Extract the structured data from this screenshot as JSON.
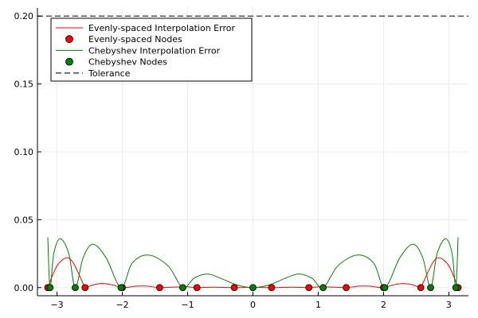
{
  "chart_data": {
    "type": "line",
    "title": "",
    "xlabel": "",
    "ylabel": "",
    "xlim": [
      -3.3,
      3.3
    ],
    "ylim": [
      -0.006,
      0.206
    ],
    "grid": true,
    "legend_position": "top-left",
    "x_ticks": [
      -3,
      -2,
      -1,
      0,
      1,
      2,
      3
    ],
    "x_tick_labels": [
      "−3",
      "−2",
      "−1",
      "0",
      "1",
      "2",
      "3"
    ],
    "y_ticks": [
      0.0,
      0.05,
      0.1,
      0.15,
      0.2
    ],
    "y_tick_labels": [
      "0.00",
      "0.05",
      "0.10",
      "0.15",
      "0.20"
    ],
    "colors": {
      "evenly": "#ff0000",
      "cheb": "#008000",
      "tolerance": "#555555",
      "grid": "#ececec",
      "marker_edge": "#000000"
    },
    "tolerance": 0.2,
    "evenly_nodes_x": [
      -3.1416,
      -2.5703,
      -1.9992,
      -1.428,
      -0.8568,
      -0.2856,
      0.2856,
      0.8568,
      1.428,
      1.9992,
      2.5703,
      3.1416
    ],
    "cheb_nodes_x": [
      -3.1066,
      -2.7207,
      -2.0194,
      -1.0745,
      0.0,
      1.0745,
      2.0194,
      2.7207,
      3.1066
    ],
    "evenly_curve": {
      "x": [
        -3.1416,
        -3.0,
        -2.85,
        -2.75,
        -2.6,
        -2.5703,
        -2.45,
        -2.3,
        -2.15,
        -2.0,
        -1.8,
        -1.7,
        -1.6,
        -1.43,
        -1.2,
        -1.0,
        -0.86,
        -0.6,
        -0.29,
        0.0,
        0.29,
        0.6,
        0.86,
        1.0,
        1.2,
        1.43,
        1.6,
        1.7,
        1.8,
        2.0,
        2.15,
        2.3,
        2.45,
        2.5703,
        2.6,
        2.75,
        2.85,
        3.0,
        3.1416
      ],
      "y": [
        0.0,
        0.016,
        0.022,
        0.018,
        0.003,
        0.0,
        0.002,
        0.003,
        0.002,
        0.0,
        0.001,
        0.0012,
        0.001,
        0.0,
        0.0004,
        0.0005,
        0.0,
        0.0003,
        0.0,
        0.0002,
        0.0,
        0.0003,
        0.0,
        0.0005,
        0.0004,
        0.0,
        0.001,
        0.0012,
        0.001,
        0.0,
        0.002,
        0.003,
        0.002,
        0.0,
        0.003,
        0.018,
        0.022,
        0.016,
        0.0
      ]
    },
    "cheb_curve": {
      "x": [
        -3.1416,
        -3.1066,
        -3.05,
        -2.95,
        -2.82,
        -2.7207,
        -2.6,
        -2.45,
        -2.25,
        -2.0194,
        -1.85,
        -1.6,
        -1.3,
        -1.0745,
        -0.9,
        -0.7,
        -0.5,
        -0.25,
        0.0,
        0.25,
        0.5,
        0.7,
        0.9,
        1.0745,
        1.3,
        1.6,
        1.85,
        2.0194,
        2.25,
        2.45,
        2.6,
        2.7207,
        2.82,
        2.95,
        3.05,
        3.1066,
        3.1416
      ],
      "y": [
        0.037,
        0.0,
        0.025,
        0.036,
        0.025,
        0.0,
        0.022,
        0.032,
        0.022,
        0.0,
        0.018,
        0.024,
        0.016,
        0.0,
        0.007,
        0.01,
        0.007,
        0.002,
        0.0,
        0.002,
        0.007,
        0.01,
        0.007,
        0.0,
        0.016,
        0.024,
        0.018,
        0.0,
        0.022,
        0.032,
        0.022,
        0.0,
        0.025,
        0.036,
        0.025,
        0.0,
        0.037
      ]
    },
    "legend": [
      {
        "label": "Evenly-spaced Interpolation Error",
        "kind": "line",
        "color": "#ff0000",
        "dash": false
      },
      {
        "label": "Evenly-spaced Nodes",
        "kind": "marker",
        "color": "#ff0000",
        "dash": false
      },
      {
        "label": "Chebyshev Interpolation Error",
        "kind": "line",
        "color": "#008000",
        "dash": false
      },
      {
        "label": "Chebyshev Nodes",
        "kind": "marker",
        "color": "#008000",
        "dash": false
      },
      {
        "label": "Tolerance",
        "kind": "line",
        "color": "#555555",
        "dash": true
      }
    ]
  }
}
